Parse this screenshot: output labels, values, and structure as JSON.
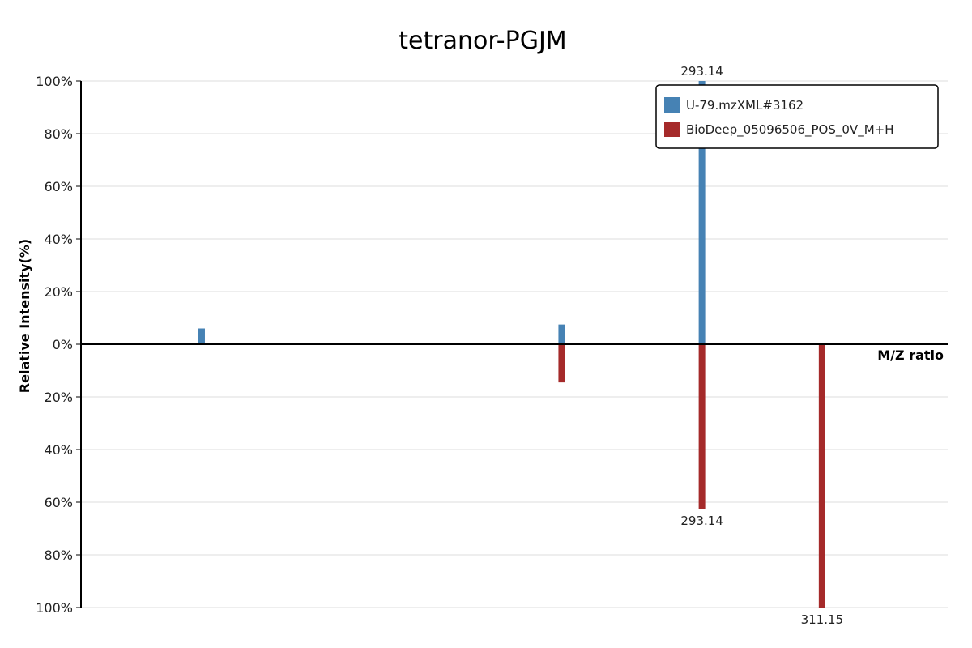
{
  "chart_data": {
    "type": "bar",
    "title": "tetranor-PGJM",
    "xlabel": "M/Z ratio",
    "ylabel": "Relative Intensity(%)",
    "y_ticks_top": [
      "100%",
      "80%",
      "60%",
      "40%",
      "20%",
      "0%"
    ],
    "y_ticks_bottom": [
      "20%",
      "40%",
      "60%",
      "80%",
      "100%"
    ],
    "ylim": [
      -100,
      100
    ],
    "xlim": [
      200,
      330
    ],
    "grid": true,
    "legend_position": "top-right",
    "series": [
      {
        "name": "U-79.mzXML#3162",
        "color": "#4682b4",
        "direction": "up",
        "peaks": [
          {
            "mz": 218.1,
            "intensity": 6,
            "label": ""
          },
          {
            "mz": 272.1,
            "intensity": 7.5,
            "label": ""
          },
          {
            "mz": 293.14,
            "intensity": 100,
            "label": "293.14"
          }
        ]
      },
      {
        "name": "BioDeep_05096506_POS_0V_M+H",
        "color": "#a52a2a",
        "direction": "down",
        "peaks": [
          {
            "mz": 272.1,
            "intensity": 14.5,
            "label": ""
          },
          {
            "mz": 293.14,
            "intensity": 62.5,
            "label": "293.14"
          },
          {
            "mz": 311.15,
            "intensity": 100,
            "label": "311.15"
          }
        ]
      }
    ]
  }
}
